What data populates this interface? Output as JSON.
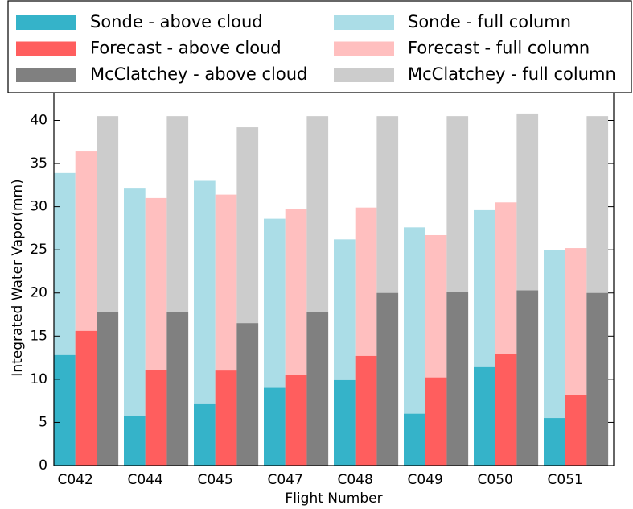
{
  "chart_data": {
    "type": "overlaid_bar",
    "categories": [
      "C042",
      "C044",
      "C045",
      "C047",
      "C048",
      "C049",
      "C050",
      "C051"
    ],
    "series": [
      {
        "name": "Sonde - above cloud",
        "color": "#35b3c9",
        "values": [
          12.8,
          5.7,
          7.1,
          9.0,
          9.9,
          6.0,
          11.4,
          5.5
        ]
      },
      {
        "name": "Forecast - above cloud",
        "color": "#ff5e5e",
        "values": [
          15.6,
          11.1,
          11.0,
          10.5,
          12.7,
          10.2,
          12.9,
          8.2
        ]
      },
      {
        "name": "McClatchey - above cloud",
        "color": "#808080",
        "values": [
          17.8,
          17.8,
          16.5,
          17.8,
          20.0,
          20.1,
          20.3,
          20.0
        ]
      },
      {
        "name": "Sonde - full column",
        "color": "#abdde7",
        "values": [
          33.9,
          32.1,
          33.0,
          28.6,
          26.2,
          27.6,
          29.6,
          25.0
        ]
      },
      {
        "name": "Forecast - full column",
        "color": "#ffbfbf",
        "values": [
          36.4,
          31.0,
          31.4,
          29.7,
          29.9,
          26.7,
          30.5,
          25.2
        ]
      },
      {
        "name": "McClatchey - full column",
        "color": "#cccccc",
        "values": [
          40.5,
          40.5,
          39.2,
          40.5,
          40.5,
          40.5,
          40.8,
          40.5
        ]
      }
    ],
    "x_label": "Flight Number",
    "y_label": "Integrated Water Vapor(mm)",
    "ylim": [
      0,
      43.5
    ],
    "yticks": [
      0,
      5,
      10,
      15,
      20,
      25,
      30,
      35,
      40
    ],
    "legend": "top"
  }
}
